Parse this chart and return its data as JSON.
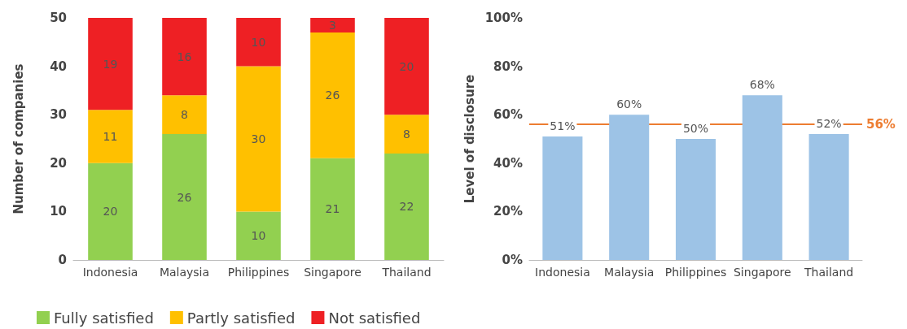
{
  "chart_data": [
    {
      "type": "bar",
      "stacked": true,
      "categories": [
        "Indonesia",
        "Malaysia",
        "Philippines",
        "Singapore",
        "Thailand"
      ],
      "ylabel": "Number of companies",
      "ylim": [
        0,
        50
      ],
      "yticks": [
        0,
        10,
        20,
        30,
        40,
        50
      ],
      "data_labels": true,
      "legend": "bottom",
      "grid": false,
      "series": [
        {
          "name": "Fully satisfied",
          "color": "#92d050",
          "values": [
            20,
            26,
            10,
            21,
            22
          ]
        },
        {
          "name": "Partly satisfied",
          "color": "#ffc000",
          "values": [
            11,
            8,
            30,
            26,
            8
          ]
        },
        {
          "name": "Not satisfied",
          "color": "#ee2024",
          "values": [
            19,
            16,
            10,
            3,
            20
          ]
        }
      ]
    },
    {
      "type": "bar",
      "categories": [
        "Indonesia",
        "Malaysia",
        "Philippines",
        "Singapore",
        "Thailand"
      ],
      "ylabel": "Level of disclosure",
      "ylim": [
        0,
        100
      ],
      "yticks": [
        {
          "value": 0,
          "label": "0%"
        },
        {
          "value": 20,
          "label": "20%"
        },
        {
          "value": 40,
          "label": "40%"
        },
        {
          "value": 60,
          "label": "60%"
        },
        {
          "value": 80,
          "label": "80%"
        },
        {
          "value": 100,
          "label": "100%"
        }
      ],
      "grid": false,
      "series": [
        {
          "color": "#9dc3e6",
          "values": [
            51,
            60,
            50,
            68,
            52
          ],
          "value_labels": [
            "51%",
            "60%",
            "50%",
            "68%",
            "52%"
          ]
        }
      ],
      "ref_lines": [
        {
          "axis": "y",
          "value": 56,
          "label": "56%",
          "color": "#ed7d31"
        }
      ]
    }
  ]
}
